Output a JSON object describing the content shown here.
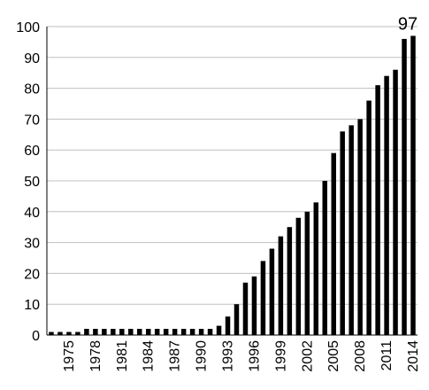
{
  "chart_data": {
    "type": "bar",
    "title": "",
    "xlabel": "",
    "ylabel": "",
    "ylim": [
      0,
      100
    ],
    "yticks": [
      0,
      10,
      20,
      30,
      40,
      50,
      60,
      70,
      80,
      90,
      100
    ],
    "grid": "horizontal",
    "legend": "none",
    "bar_color": "#000000",
    "grid_color": "#bfbfbf",
    "categories": [
      "1973",
      "1974",
      "1975",
      "1976",
      "1977",
      "1978",
      "1979",
      "1980",
      "1981",
      "1982",
      "1983",
      "1984",
      "1985",
      "1986",
      "1987",
      "1988",
      "1989",
      "1990",
      "1991",
      "1992",
      "1993",
      "1994",
      "1995",
      "1996",
      "1997",
      "1998",
      "1999",
      "2000",
      "2001",
      "2002",
      "2003",
      "2004",
      "2005",
      "2006",
      "2007",
      "2008",
      "2009",
      "2010",
      "2011",
      "2012",
      "2013",
      "2014"
    ],
    "x_tick_labels": [
      "1975",
      "1978",
      "1981",
      "1984",
      "1987",
      "1990",
      "1993",
      "1996",
      "1999",
      "2002",
      "2005",
      "2008",
      "2011",
      "2014"
    ],
    "values": [
      1,
      1,
      1,
      1,
      2,
      2,
      2,
      2,
      2,
      2,
      2,
      2,
      2,
      2,
      2,
      2,
      2,
      2,
      2,
      3,
      6,
      10,
      17,
      19,
      24,
      28,
      32,
      35,
      38,
      40,
      43,
      50,
      59,
      66,
      68,
      70,
      76,
      81,
      84,
      86,
      96,
      97
    ],
    "data_labels": [
      {
        "category": "2014",
        "text": "97"
      }
    ]
  }
}
